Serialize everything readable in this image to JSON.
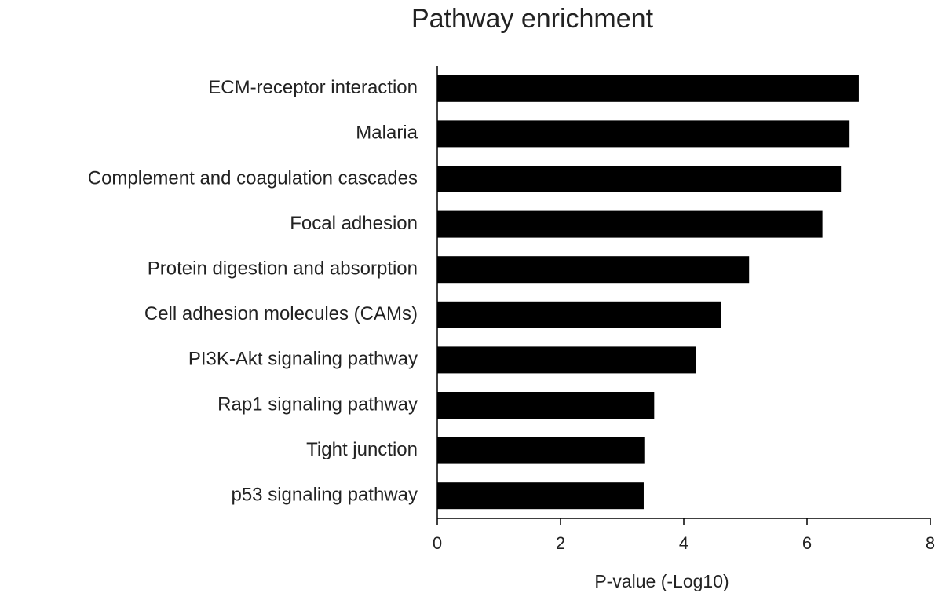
{
  "chart_data": {
    "type": "bar",
    "orientation": "horizontal",
    "title": "Pathway enrichment",
    "x_label": "P-value (-Log10)",
    "categories": [
      "ECM-receptor interaction",
      "Malaria",
      "Complement and coagulation cascades",
      "Focal adhesion",
      "Protein digestion and absorption",
      "Cell adhesion molecules (CAMs)",
      "PI3K-Akt signaling pathway",
      "Rap1 signaling pathway",
      "Tight junction",
      "p53 signaling pathway"
    ],
    "values": [
      6.84,
      6.69,
      6.55,
      6.25,
      5.06,
      4.6,
      4.2,
      3.52,
      3.36,
      3.35
    ],
    "color": "#000000",
    "xlim": [
      0,
      8
    ],
    "xticks": [
      0,
      2,
      4,
      6,
      8
    ]
  }
}
